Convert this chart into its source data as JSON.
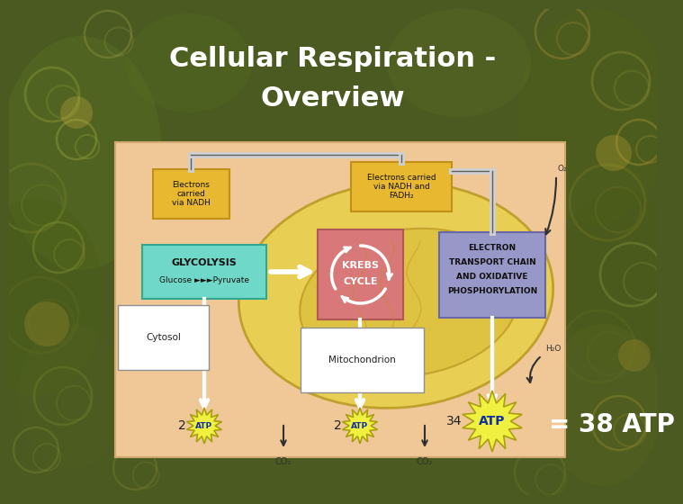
{
  "title_line1": "Cellular Respiration -",
  "title_line2": "Overview",
  "title_color": "#FFFFFF",
  "title_fontsize": 22,
  "bg_color_outer": "#4a5a20",
  "bg_color_diagram": "#f0c898",
  "mito_color": "#e8d060",
  "krebs_color": "#d87878",
  "glycolysis_color": "#70d8c8",
  "electron_box_color": "#9898c8",
  "atp_burst_color": "#f0f040",
  "atp_text_color": "#1030a0",
  "equals_text": "= 38 ATP",
  "equals_fontsize": 20,
  "co2_labels": [
    "CO₂",
    "CO₂"
  ],
  "h2o_label": "H₂O",
  "o2_label": "O₂",
  "atp_counts": [
    "2",
    "2",
    "34"
  ],
  "cytosol_label": "Cytosol",
  "mito_label": "Mitochondrion",
  "glycolysis_label1": "GLYCOLYSIS",
  "glycolysis_label2": "Glucose ►►►Pyruvate",
  "krebs_label1": "KREBS",
  "krebs_label2": "CYCLE",
  "electron_label1": "ELECTRON",
  "electron_label2": "TRANSPORT CHAIN",
  "electron_label3": "AND OXIDATIVE",
  "electron_label4": "PHOSPHORYLATION",
  "nadh_label": "Electrons\ncarried\nvia NADH",
  "nadh2_label": "Electrons carried\nvia NADH and\nFADH₂",
  "nadh_box_color": "#e8b830",
  "nadh_box_edge": "#c09018"
}
